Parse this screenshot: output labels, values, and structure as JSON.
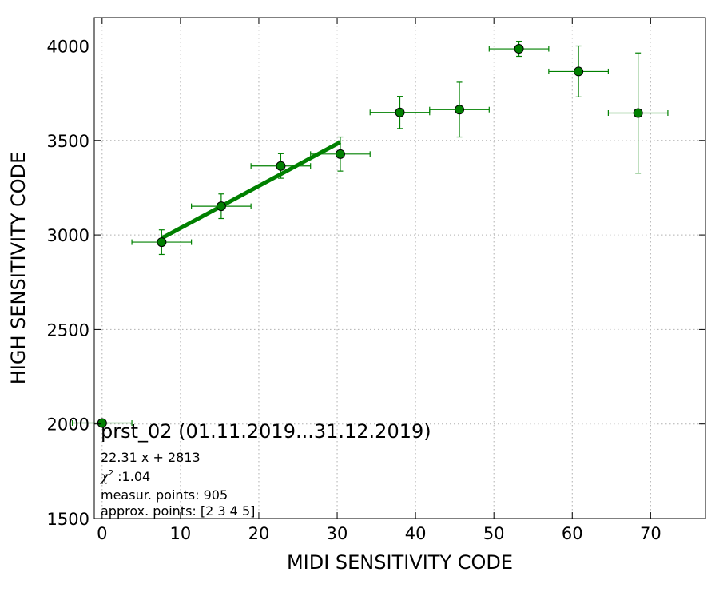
{
  "chart_data": {
    "type": "scatter",
    "title": "",
    "xlabel": "MIDI SENSITIVITY CODE",
    "ylabel": "HIGH SENSITIVITY CODE",
    "xlim": [
      -1,
      77
    ],
    "ylim": [
      1500,
      4150
    ],
    "x_ticks": [
      0,
      10,
      20,
      30,
      40,
      50,
      60,
      70
    ],
    "y_ticks": [
      1500,
      2000,
      2500,
      3000,
      3500,
      4000
    ],
    "grid": true,
    "colors": {
      "marker": "#008000",
      "errorbar": "#008000",
      "fit_line": "#008000"
    },
    "series": [
      {
        "points": [
          {
            "x": 0.0,
            "y": 2005,
            "xerr": 3.8,
            "yerr": 0
          },
          {
            "x": 7.6,
            "y": 2962,
            "xerr": 3.8,
            "yerr": 65
          },
          {
            "x": 15.2,
            "y": 3152,
            "xerr": 3.8,
            "yerr": 65
          },
          {
            "x": 22.8,
            "y": 3365,
            "xerr": 3.8,
            "yerr": 65
          },
          {
            "x": 30.4,
            "y": 3428,
            "xerr": 3.8,
            "yerr": 90
          },
          {
            "x": 38.0,
            "y": 3648,
            "xerr": 3.8,
            "yerr": 85
          },
          {
            "x": 45.6,
            "y": 3663,
            "xerr": 3.8,
            "yerr": 145
          },
          {
            "x": 53.2,
            "y": 3985,
            "xerr": 3.8,
            "yerr": 40
          },
          {
            "x": 60.8,
            "y": 3865,
            "xerr": 3.8,
            "yerr": 135
          },
          {
            "x": 68.4,
            "y": 3645,
            "xerr": 3.8,
            "yerr": 318
          }
        ]
      }
    ],
    "fit": {
      "slope": 22.31,
      "intercept": 2813,
      "x_range": [
        7.6,
        30.4
      ]
    },
    "annotations": {
      "heading": "prst_02 (01.11.2019...31.12.2019)",
      "equation": "22.31 x + 2813",
      "chi_symbol": "χ",
      "chi_exp": "2",
      "chi_value": " :1.04",
      "measured": "measur. points: 905",
      "approx": "approx. points: [2 3 4 5]"
    }
  }
}
